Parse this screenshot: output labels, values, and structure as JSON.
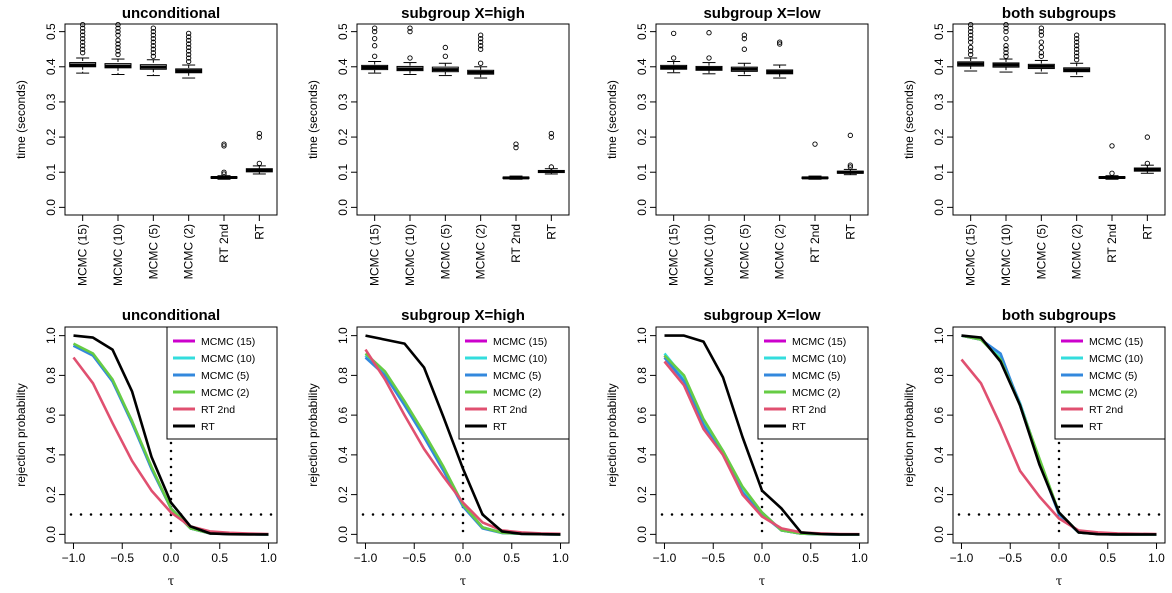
{
  "chart_data": [
    {
      "type": "box",
      "title": "unconditional",
      "ylabel": "time (seconds)",
      "ylim": [
        0,
        0.5
      ],
      "yticks": [
        "0.0",
        "0.1",
        "0.2",
        "0.3",
        "0.4",
        "0.5"
      ],
      "categories": [
        "MCMC (15)",
        "MCMC (10)",
        "MCMC (5)",
        "MCMC (2)",
        "RT 2nd",
        "RT"
      ],
      "boxes": [
        {
          "min": 0.382,
          "q1": 0.4,
          "median": 0.405,
          "q3": 0.412,
          "max": 0.425,
          "outliers": [
            0.44,
            0.45,
            0.46,
            0.47,
            0.48,
            0.49,
            0.5,
            0.51,
            0.52
          ]
        },
        {
          "min": 0.378,
          "q1": 0.397,
          "median": 0.402,
          "q3": 0.409,
          "max": 0.422,
          "outliers": [
            0.435,
            0.445,
            0.455,
            0.465,
            0.475,
            0.49,
            0.5,
            0.51,
            0.52
          ]
        },
        {
          "min": 0.375,
          "q1": 0.393,
          "median": 0.399,
          "q3": 0.406,
          "max": 0.42,
          "outliers": [
            0.43,
            0.44,
            0.45,
            0.46,
            0.47,
            0.48,
            0.49,
            0.5,
            0.51
          ]
        },
        {
          "min": 0.368,
          "q1": 0.383,
          "median": 0.388,
          "q3": 0.394,
          "max": 0.405,
          "outliers": [
            0.415,
            0.425,
            0.435,
            0.445,
            0.455,
            0.465,
            0.475,
            0.485,
            0.495
          ]
        },
        {
          "min": 0.08,
          "q1": 0.083,
          "median": 0.085,
          "q3": 0.087,
          "max": 0.09,
          "outliers": [
            0.095,
            0.1,
            0.175,
            0.18
          ]
        },
        {
          "min": 0.095,
          "q1": 0.101,
          "median": 0.105,
          "q3": 0.11,
          "max": 0.118,
          "outliers": [
            0.125,
            0.2,
            0.21
          ]
        }
      ]
    },
    {
      "type": "box",
      "title": "subgroup X=high",
      "ylabel": "time (seconds)",
      "ylim": [
        0,
        0.5
      ],
      "yticks": [
        "0.0",
        "0.1",
        "0.2",
        "0.3",
        "0.4",
        "0.5"
      ],
      "categories": [
        "MCMC (15)",
        "MCMC (10)",
        "MCMC (5)",
        "MCMC (2)",
        "RT 2nd",
        "RT"
      ],
      "boxes": [
        {
          "min": 0.382,
          "q1": 0.392,
          "median": 0.398,
          "q3": 0.404,
          "max": 0.415,
          "outliers": [
            0.43,
            0.46,
            0.48,
            0.5,
            0.51
          ]
        },
        {
          "min": 0.378,
          "q1": 0.389,
          "median": 0.394,
          "q3": 0.401,
          "max": 0.412,
          "outliers": [
            0.425,
            0.5,
            0.51
          ]
        },
        {
          "min": 0.375,
          "q1": 0.386,
          "median": 0.392,
          "q3": 0.399,
          "max": 0.41,
          "outliers": [
            0.43,
            0.455
          ]
        },
        {
          "min": 0.368,
          "q1": 0.379,
          "median": 0.384,
          "q3": 0.39,
          "max": 0.4,
          "outliers": [
            0.41,
            0.45,
            0.46,
            0.47,
            0.48,
            0.49
          ]
        },
        {
          "min": 0.08,
          "q1": 0.082,
          "median": 0.084,
          "q3": 0.086,
          "max": 0.089,
          "outliers": [
            0.17,
            0.18
          ]
        },
        {
          "min": 0.095,
          "q1": 0.099,
          "median": 0.102,
          "q3": 0.105,
          "max": 0.11,
          "outliers": [
            0.115,
            0.2,
            0.21
          ]
        }
      ]
    },
    {
      "type": "box",
      "title": "subgroup X=low",
      "ylabel": "time (seconds)",
      "ylim": [
        0,
        0.5
      ],
      "yticks": [
        "0.0",
        "0.1",
        "0.2",
        "0.3",
        "0.4",
        "0.5"
      ],
      "categories": [
        "MCMC (15)",
        "MCMC (10)",
        "MCMC (5)",
        "MCMC (2)",
        "RT 2nd",
        "RT"
      ],
      "boxes": [
        {
          "min": 0.383,
          "q1": 0.393,
          "median": 0.398,
          "q3": 0.404,
          "max": 0.415,
          "outliers": [
            0.425,
            0.495
          ]
        },
        {
          "min": 0.38,
          "q1": 0.39,
          "median": 0.395,
          "q3": 0.401,
          "max": 0.412,
          "outliers": [
            0.425,
            0.497
          ]
        },
        {
          "min": 0.375,
          "q1": 0.387,
          "median": 0.393,
          "q3": 0.399,
          "max": 0.41,
          "outliers": [
            0.45,
            0.48,
            0.49
          ]
        },
        {
          "min": 0.368,
          "q1": 0.38,
          "median": 0.385,
          "q3": 0.391,
          "max": 0.405,
          "outliers": [
            0.465,
            0.47
          ]
        },
        {
          "min": 0.08,
          "q1": 0.082,
          "median": 0.084,
          "q3": 0.086,
          "max": 0.089,
          "outliers": [
            0.18
          ]
        },
        {
          "min": 0.093,
          "q1": 0.097,
          "median": 0.1,
          "q3": 0.103,
          "max": 0.108,
          "outliers": [
            0.115,
            0.12,
            0.205
          ]
        }
      ]
    },
    {
      "type": "box",
      "title": "both subgroups",
      "ylabel": "time (seconds)",
      "ylim": [
        0,
        0.5
      ],
      "yticks": [
        "0.0",
        "0.1",
        "0.2",
        "0.3",
        "0.4",
        "0.5"
      ],
      "categories": [
        "MCMC (15)",
        "MCMC (10)",
        "MCMC (5)",
        "MCMC (2)",
        "RT 2nd",
        "RT"
      ],
      "boxes": [
        {
          "min": 0.388,
          "q1": 0.402,
          "median": 0.408,
          "q3": 0.414,
          "max": 0.425,
          "outliers": [
            0.435,
            0.445,
            0.455,
            0.47,
            0.48,
            0.49,
            0.5,
            0.51,
            0.52
          ]
        },
        {
          "min": 0.385,
          "q1": 0.399,
          "median": 0.405,
          "q3": 0.411,
          "max": 0.422,
          "outliers": [
            0.43,
            0.44,
            0.45,
            0.46,
            0.48,
            0.5,
            0.51,
            0.52
          ]
        },
        {
          "min": 0.382,
          "q1": 0.395,
          "median": 0.401,
          "q3": 0.407,
          "max": 0.418,
          "outliers": [
            0.43,
            0.44,
            0.455,
            0.47,
            0.49,
            0.5,
            0.51
          ]
        },
        {
          "min": 0.372,
          "q1": 0.386,
          "median": 0.391,
          "q3": 0.397,
          "max": 0.41,
          "outliers": [
            0.42,
            0.43,
            0.44,
            0.45,
            0.46,
            0.47,
            0.48,
            0.49
          ]
        },
        {
          "min": 0.08,
          "q1": 0.083,
          "median": 0.085,
          "q3": 0.087,
          "max": 0.09,
          "outliers": [
            0.097,
            0.175
          ]
        },
        {
          "min": 0.097,
          "q1": 0.103,
          "median": 0.107,
          "q3": 0.112,
          "max": 0.12,
          "outliers": [
            0.125,
            0.2
          ]
        }
      ]
    },
    {
      "type": "line",
      "title": "unconditional",
      "xlabel": "τ",
      "ylabel": "rejection probability",
      "xlim": [
        -1,
        1
      ],
      "ylim": [
        0,
        1
      ],
      "xticks": [
        "−1.0",
        "−0.5",
        "0.0",
        "0.5",
        "1.0"
      ],
      "yticks": [
        "0.0",
        "0.2",
        "0.4",
        "0.6",
        "0.8",
        "1.0"
      ],
      "hline": 0.1,
      "vline": 0,
      "x": [
        -1.0,
        -0.8,
        -0.6,
        -0.4,
        -0.2,
        0.0,
        0.2,
        0.4,
        0.6,
        0.8,
        1.0
      ],
      "series": [
        {
          "name": "MCMC (15)",
          "color": "#cc00cc",
          "values": [
            0.95,
            0.9,
            0.77,
            0.57,
            0.33,
            0.13,
            0.03,
            0.005,
            0.002,
            0.001,
            0.0
          ]
        },
        {
          "name": "MCMC (10)",
          "color": "#33dddd",
          "values": [
            0.95,
            0.9,
            0.77,
            0.57,
            0.33,
            0.13,
            0.03,
            0.005,
            0.002,
            0.001,
            0.0
          ]
        },
        {
          "name": "MCMC (5)",
          "color": "#3388dd",
          "values": [
            0.95,
            0.9,
            0.77,
            0.56,
            0.33,
            0.13,
            0.03,
            0.005,
            0.002,
            0.001,
            0.0
          ]
        },
        {
          "name": "MCMC (2)",
          "color": "#66cc44",
          "values": [
            0.96,
            0.91,
            0.78,
            0.57,
            0.34,
            0.13,
            0.03,
            0.005,
            0.002,
            0.001,
            0.0
          ]
        },
        {
          "name": "RT 2nd",
          "color": "#e05070",
          "values": [
            0.89,
            0.76,
            0.56,
            0.37,
            0.22,
            0.11,
            0.04,
            0.015,
            0.008,
            0.004,
            0.002
          ]
        },
        {
          "name": "RT",
          "color": "#000000",
          "values": [
            1.0,
            0.99,
            0.93,
            0.72,
            0.39,
            0.16,
            0.04,
            0.005,
            0.001,
            0.0,
            0.0
          ]
        }
      ]
    },
    {
      "type": "line",
      "title": "subgroup X=high",
      "xlabel": "τ",
      "ylabel": "rejection probability",
      "xlim": [
        -1,
        1
      ],
      "ylim": [
        0,
        1
      ],
      "xticks": [
        "−1.0",
        "−0.5",
        "0.0",
        "0.5",
        "1.0"
      ],
      "yticks": [
        "0.0",
        "0.2",
        "0.4",
        "0.6",
        "0.8",
        "1.0"
      ],
      "hline": 0.1,
      "vline": 0,
      "x": [
        -1.0,
        -0.8,
        -0.6,
        -0.4,
        -0.2,
        0.0,
        0.2,
        0.4,
        0.6,
        0.8,
        1.0
      ],
      "series": [
        {
          "name": "MCMC (15)",
          "color": "#cc00cc",
          "values": [
            0.9,
            0.81,
            0.66,
            0.5,
            0.33,
            0.15,
            0.035,
            0.008,
            0.003,
            0.001,
            0.0
          ]
        },
        {
          "name": "MCMC (10)",
          "color": "#33dddd",
          "values": [
            0.9,
            0.81,
            0.66,
            0.5,
            0.33,
            0.15,
            0.035,
            0.008,
            0.003,
            0.001,
            0.0
          ]
        },
        {
          "name": "MCMC (5)",
          "color": "#3388dd",
          "values": [
            0.89,
            0.8,
            0.65,
            0.49,
            0.32,
            0.14,
            0.03,
            0.007,
            0.003,
            0.001,
            0.0
          ]
        },
        {
          "name": "MCMC (2)",
          "color": "#66cc44",
          "values": [
            0.91,
            0.82,
            0.67,
            0.51,
            0.34,
            0.15,
            0.035,
            0.008,
            0.003,
            0.001,
            0.0
          ]
        },
        {
          "name": "RT 2nd",
          "color": "#e05070",
          "values": [
            0.93,
            0.78,
            0.6,
            0.43,
            0.29,
            0.16,
            0.06,
            0.02,
            0.01,
            0.005,
            0.003
          ]
        },
        {
          "name": "RT",
          "color": "#000000",
          "values": [
            1.0,
            0.98,
            0.96,
            0.84,
            0.59,
            0.33,
            0.1,
            0.015,
            0.003,
            0.001,
            0.0
          ]
        }
      ]
    },
    {
      "type": "line",
      "title": "subgroup X=low",
      "xlabel": "τ",
      "ylabel": "rejection probability",
      "xlim": [
        -1,
        1
      ],
      "ylim": [
        0,
        1
      ],
      "xticks": [
        "−1.0",
        "−0.5",
        "0.0",
        "0.5",
        "1.0"
      ],
      "yticks": [
        "0.0",
        "0.2",
        "0.4",
        "0.6",
        "0.8",
        "1.0"
      ],
      "hline": 0.1,
      "vline": 0,
      "x": [
        -1.0,
        -0.8,
        -0.6,
        -0.4,
        -0.2,
        0.0,
        0.2,
        0.4,
        0.6,
        0.8,
        1.0
      ],
      "series": [
        {
          "name": "MCMC (15)",
          "color": "#cc00cc",
          "values": [
            0.9,
            0.78,
            0.56,
            0.41,
            0.23,
            0.11,
            0.02,
            0.004,
            0.001,
            0.0,
            0.0
          ]
        },
        {
          "name": "MCMC (10)",
          "color": "#33dddd",
          "values": [
            0.91,
            0.79,
            0.57,
            0.42,
            0.23,
            0.11,
            0.02,
            0.004,
            0.001,
            0.0,
            0.0
          ]
        },
        {
          "name": "MCMC (5)",
          "color": "#3388dd",
          "values": [
            0.89,
            0.77,
            0.55,
            0.4,
            0.21,
            0.1,
            0.02,
            0.004,
            0.001,
            0.0,
            0.0
          ]
        },
        {
          "name": "MCMC (2)",
          "color": "#66cc44",
          "values": [
            0.9,
            0.8,
            0.58,
            0.42,
            0.24,
            0.11,
            0.02,
            0.004,
            0.001,
            0.0,
            0.0
          ]
        },
        {
          "name": "RT 2nd",
          "color": "#e05070",
          "values": [
            0.87,
            0.75,
            0.53,
            0.4,
            0.2,
            0.09,
            0.03,
            0.01,
            0.005,
            0.002,
            0.001
          ]
        },
        {
          "name": "RT",
          "color": "#000000",
          "values": [
            1.0,
            1.0,
            0.97,
            0.79,
            0.49,
            0.22,
            0.13,
            0.01,
            0.002,
            0.0,
            0.0
          ]
        }
      ]
    },
    {
      "type": "line",
      "title": "both subgroups",
      "xlabel": "τ",
      "ylabel": "rejection probability",
      "xlim": [
        -1,
        1
      ],
      "ylim": [
        0,
        1
      ],
      "xticks": [
        "−1.0",
        "−0.5",
        "0.0",
        "0.5",
        "1.0"
      ],
      "yticks": [
        "0.0",
        "0.2",
        "0.4",
        "0.6",
        "0.8",
        "1.0"
      ],
      "hline": 0.1,
      "vline": 0,
      "x": [
        -1.0,
        -0.8,
        -0.6,
        -0.4,
        -0.2,
        0.0,
        0.2,
        0.4,
        0.6,
        0.8,
        1.0
      ],
      "series": [
        {
          "name": "MCMC (15)",
          "color": "#cc00cc",
          "values": [
            1.0,
            0.98,
            0.89,
            0.66,
            0.37,
            0.11,
            0.01,
            0.002,
            0.0,
            0.0,
            0.0
          ]
        },
        {
          "name": "MCMC (10)",
          "color": "#33dddd",
          "values": [
            1.0,
            0.98,
            0.89,
            0.66,
            0.37,
            0.11,
            0.01,
            0.002,
            0.0,
            0.0,
            0.0
          ]
        },
        {
          "name": "MCMC (5)",
          "color": "#3388dd",
          "values": [
            1.0,
            0.98,
            0.91,
            0.65,
            0.36,
            0.1,
            0.01,
            0.002,
            0.0,
            0.0,
            0.0
          ]
        },
        {
          "name": "MCMC (2)",
          "color": "#66cc44",
          "values": [
            1.0,
            0.98,
            0.88,
            0.65,
            0.38,
            0.11,
            0.01,
            0.002,
            0.0,
            0.0,
            0.0
          ]
        },
        {
          "name": "RT 2nd",
          "color": "#e05070",
          "values": [
            0.88,
            0.76,
            0.55,
            0.32,
            0.19,
            0.08,
            0.02,
            0.01,
            0.005,
            0.003,
            0.002
          ]
        },
        {
          "name": "RT",
          "color": "#000000",
          "values": [
            1.0,
            0.99,
            0.87,
            0.65,
            0.35,
            0.11,
            0.01,
            0.001,
            0.0,
            0.0,
            0.0
          ]
        }
      ]
    }
  ]
}
